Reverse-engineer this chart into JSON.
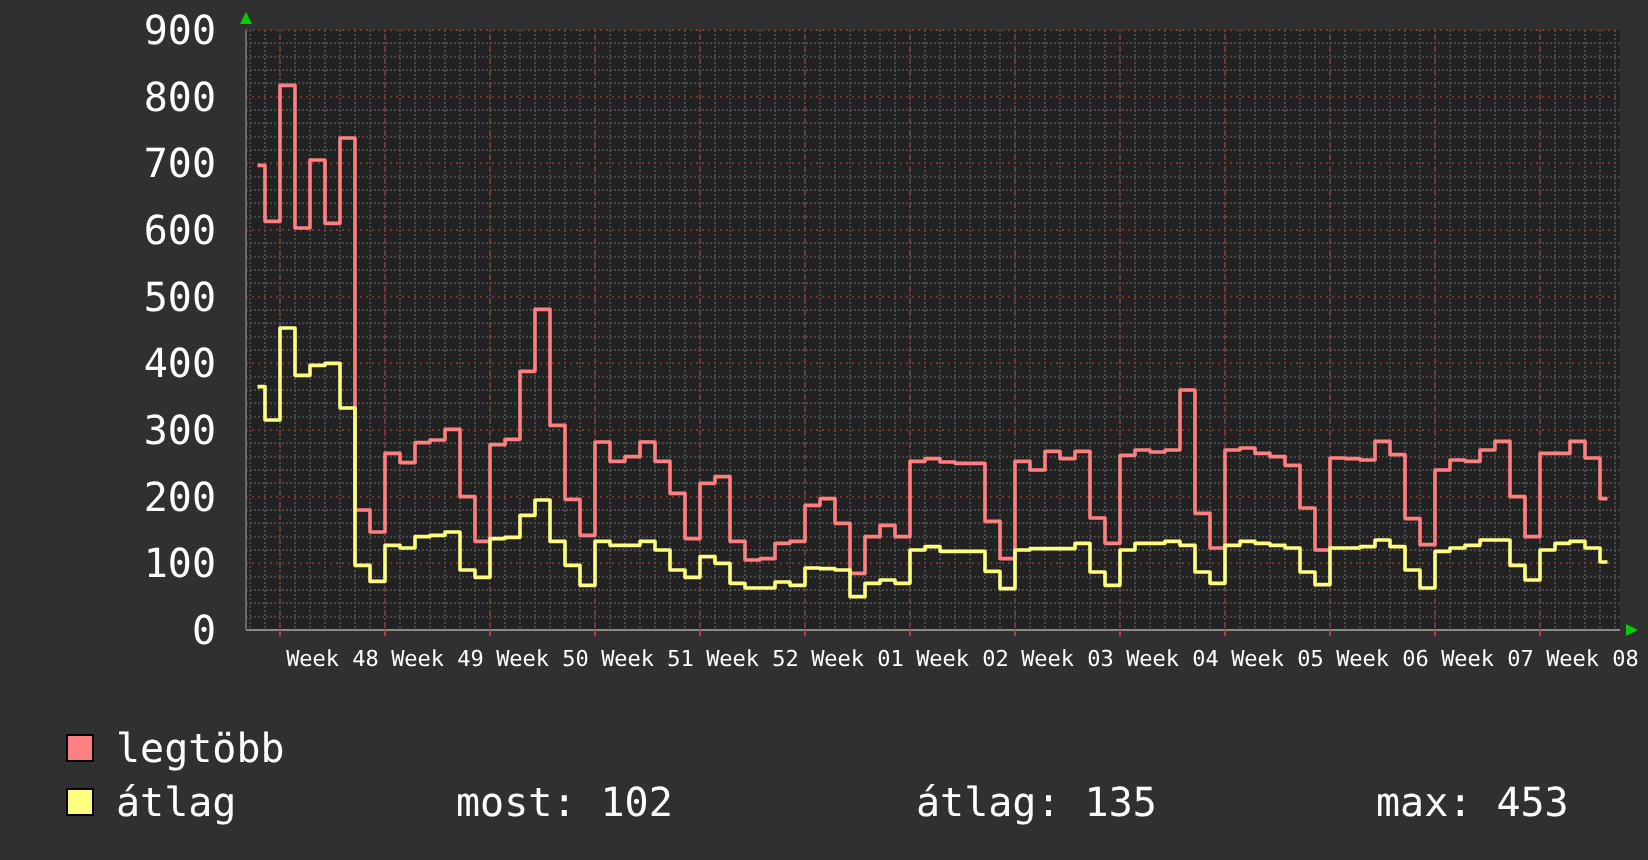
{
  "chart_data": {
    "type": "step",
    "categories": [
      null,
      null,
      null,
      null,
      null,
      "Week 48",
      null,
      null,
      null,
      null,
      null,
      null,
      "Week 49",
      null,
      null,
      null,
      null,
      null,
      null,
      "Week 50",
      null,
      null,
      null,
      null,
      null,
      null,
      "Week 51",
      null,
      null,
      null,
      null,
      null,
      null,
      "Week 52",
      null,
      null,
      null,
      null,
      null,
      null,
      "Week 01",
      null,
      null,
      null,
      null,
      null,
      null,
      "Week 02",
      null,
      null,
      null,
      null,
      null,
      null,
      "Week 03",
      null,
      null,
      null,
      null,
      null,
      null,
      "Week 04",
      null,
      null,
      null,
      null,
      null,
      null,
      "Week 05",
      null,
      null,
      null,
      null,
      null,
      null,
      "Week 06",
      null,
      null,
      null,
      null,
      null,
      null,
      "Week 07",
      null,
      null,
      null,
      null,
      null,
      null,
      "Week 08",
      null
    ],
    "series": [
      {
        "name": "legtöbb",
        "color": "#ff8080",
        "values": [
          697,
          613,
          817,
          603,
          705,
          610,
          738,
          180,
          147,
          265,
          251,
          281,
          285,
          301,
          200,
          133,
          278,
          286,
          388,
          481,
          307,
          196,
          142,
          282,
          253,
          260,
          282,
          253,
          205,
          137,
          220,
          230,
          133,
          105,
          107,
          130,
          133,
          187,
          197,
          160,
          85,
          140,
          157,
          140,
          253,
          257,
          252,
          250,
          250,
          163,
          107,
          253,
          240,
          268,
          257,
          268,
          168,
          130,
          262,
          270,
          267,
          270,
          360,
          175,
          123,
          270,
          273,
          265,
          260,
          247,
          183,
          120,
          258,
          257,
          255,
          283,
          263,
          167,
          128,
          240,
          255,
          253,
          270,
          283,
          200,
          140,
          265,
          265,
          283,
          258,
          197
        ]
      },
      {
        "name": "átlag",
        "color": "#ffff80",
        "values": [
          365,
          315,
          453,
          382,
          397,
          400,
          333,
          97,
          73,
          127,
          123,
          140,
          142,
          147,
          90,
          79,
          137,
          139,
          172,
          195,
          133,
          97,
          67,
          133,
          127,
          127,
          133,
          120,
          90,
          79,
          110,
          100,
          70,
          63,
          63,
          72,
          67,
          93,
          92,
          90,
          50,
          70,
          75,
          70,
          120,
          125,
          118,
          118,
          118,
          88,
          62,
          120,
          122,
          122,
          122,
          130,
          87,
          67,
          120,
          130,
          130,
          133,
          127,
          87,
          70,
          127,
          133,
          130,
          127,
          123,
          87,
          68,
          123,
          123,
          125,
          135,
          125,
          90,
          63,
          118,
          123,
          127,
          135,
          135,
          97,
          75,
          120,
          130,
          133,
          123,
          102
        ]
      }
    ],
    "ylim": [
      0,
      900
    ],
    "yticks": [
      0,
      100,
      200,
      300,
      400,
      500,
      600,
      700,
      800,
      900
    ],
    "grid": true,
    "legend": "bottom",
    "annotations": [
      "most: 102",
      "átlag: 135",
      "max: 453"
    ]
  }
}
